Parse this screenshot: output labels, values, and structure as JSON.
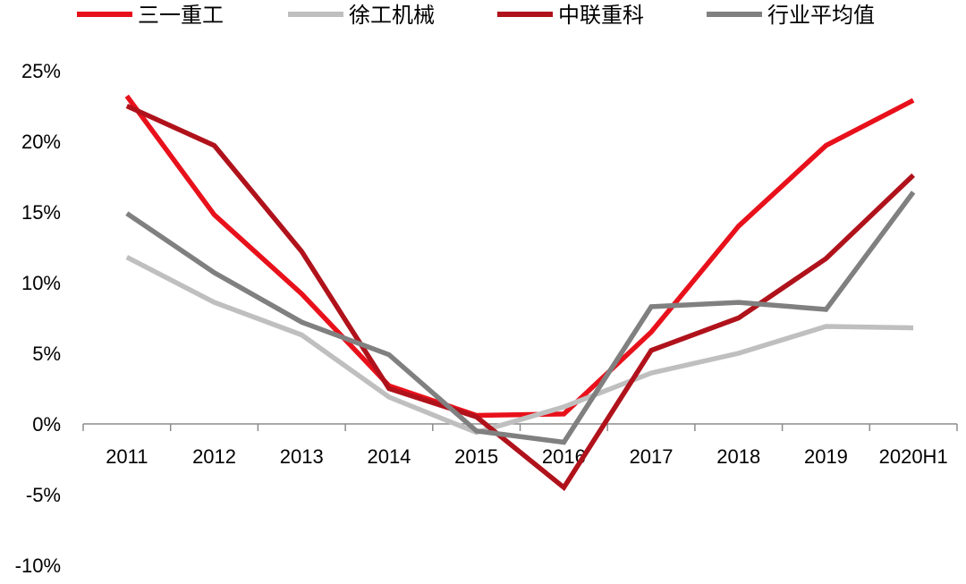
{
  "chart_data": {
    "type": "line",
    "x": [
      "2011",
      "2012",
      "2013",
      "2014",
      "2015",
      "2016",
      "2017",
      "2018",
      "2019",
      "2020H1"
    ],
    "y_ticks": [
      "25%",
      "20%",
      "15%",
      "10%",
      "5%",
      "0%",
      "-5%",
      "-10%"
    ],
    "ylim": [
      -10,
      25
    ],
    "y_unit": "%",
    "grid": false,
    "legend_position": "top",
    "series": [
      {
        "name": "三一重工",
        "color": "#e8111b",
        "values": [
          23.2,
          14.8,
          9.2,
          2.7,
          0.6,
          0.7,
          6.5,
          14.0,
          19.7,
          22.9
        ]
      },
      {
        "name": "徐工机械",
        "color": "#bfbfbf",
        "values": [
          11.8,
          8.6,
          6.3,
          1.9,
          -0.6,
          1.2,
          3.6,
          5.0,
          6.9,
          6.8
        ]
      },
      {
        "name": "中联重科",
        "color": "#b0121b",
        "values": [
          22.5,
          19.7,
          12.2,
          2.5,
          0.5,
          -4.5,
          5.2,
          7.5,
          11.7,
          17.6
        ]
      },
      {
        "name": "行业平均值",
        "color": "#808080",
        "values": [
          14.9,
          10.7,
          7.2,
          4.9,
          -0.5,
          -1.3,
          8.3,
          8.6,
          8.1,
          16.4
        ]
      }
    ]
  }
}
